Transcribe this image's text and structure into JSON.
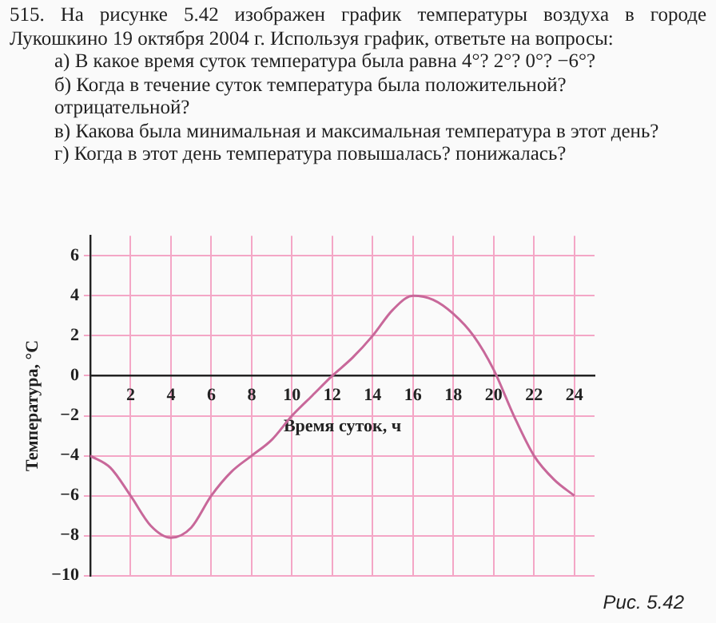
{
  "chart_data": {
    "type": "line",
    "title": "515. На рисунке 5.42 изображен график температуры воздуха в городе Лукошкино 19 октября 2004 г. Используя график, ответьте на вопросы:",
    "annotations": [
      "а) В какое время суток температура была равна 4°? 2°? 0°? −6°?",
      "б) Когда в течение суток температура была положительной? отрицательной?",
      "в) Какова была минимальная и максимальная температура в этот день?",
      "г) Когда в этот день температура повышалась? понижалась?",
      "Рис. 5.42"
    ],
    "xlabel": "Время суток, ч",
    "ylabel": "Температура, °C",
    "x": [
      0,
      1,
      2,
      3,
      4,
      5,
      6,
      7,
      8,
      9,
      10,
      11,
      12,
      13,
      14,
      15,
      16,
      17,
      18,
      19,
      20,
      21,
      22,
      23,
      24
    ],
    "series": [
      {
        "color": "#c8689a",
        "values": [
          -4,
          -4.6,
          -6,
          -7.5,
          -8.1,
          -7.6,
          -6,
          -4.8,
          -4,
          -3.2,
          -2,
          -1,
          0,
          0.9,
          2,
          3.3,
          4,
          3.8,
          3.1,
          2,
          0.3,
          -2,
          -4,
          -5.2,
          -6
        ]
      }
    ],
    "xlim": [
      0,
      25
    ],
    "xticks": [
      2,
      4,
      6,
      8,
      10,
      12,
      14,
      16,
      18,
      20,
      22,
      24
    ],
    "ylim": [
      -10,
      7
    ],
    "yticks": [
      -10,
      -8,
      -6,
      -4,
      -2,
      0,
      2,
      4,
      6
    ],
    "grid": true,
    "legend": false,
    "marker": "none",
    "line_style": "solid"
  }
}
